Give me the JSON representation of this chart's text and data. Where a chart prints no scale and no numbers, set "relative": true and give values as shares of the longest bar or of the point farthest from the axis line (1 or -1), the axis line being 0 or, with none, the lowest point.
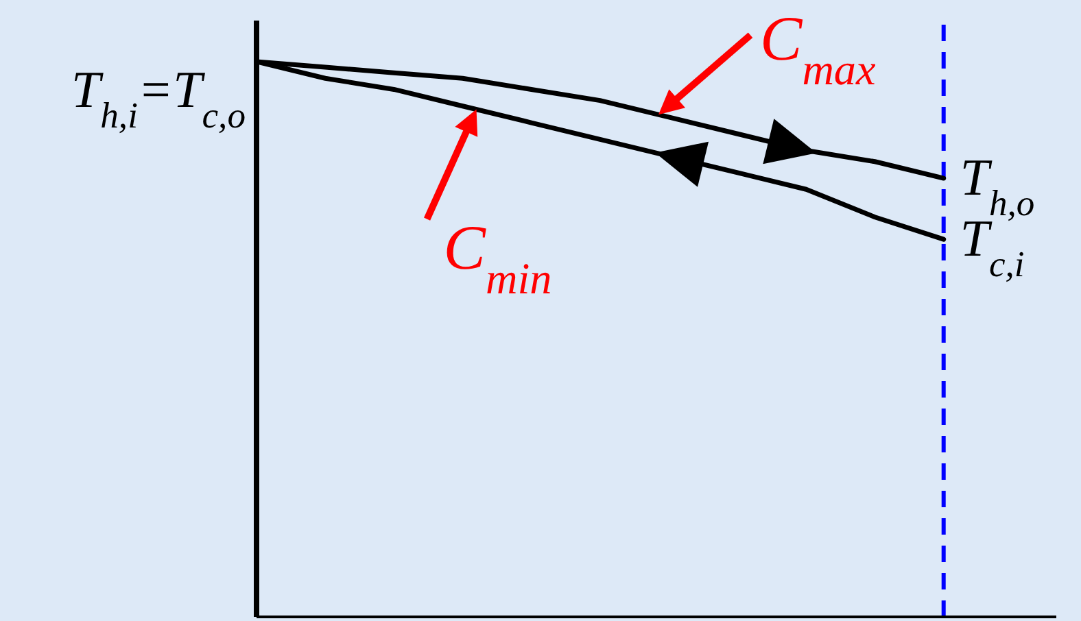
{
  "chart_data": {
    "type": "line",
    "relative": true,
    "categories": [
      null,
      null,
      null,
      null,
      null,
      null,
      null,
      null,
      null,
      null,
      null
    ],
    "series": [
      {
        "name": "C$_{max}$",
        "color": "#000000",
        "values": [
          1,
          0.99,
          0.98,
          0.97,
          0.95,
          0.93,
          0.9,
          0.87,
          0.84,
          0.82,
          0.79
        ]
      },
      {
        "name": "C$_{min}$",
        "color": "#000000",
        "values": [
          1,
          0.97,
          0.95,
          0.92,
          0.89,
          0.86,
          0.83,
          0.8,
          0.77,
          0.72,
          0.68
        ]
      }
    ],
    "annotations": [
      "T$_{h,i}$=T$_{c,o}$",
      "T$_{h,o}$",
      "T$_{c,i}$"
    ],
    "marker": "none"
  }
}
